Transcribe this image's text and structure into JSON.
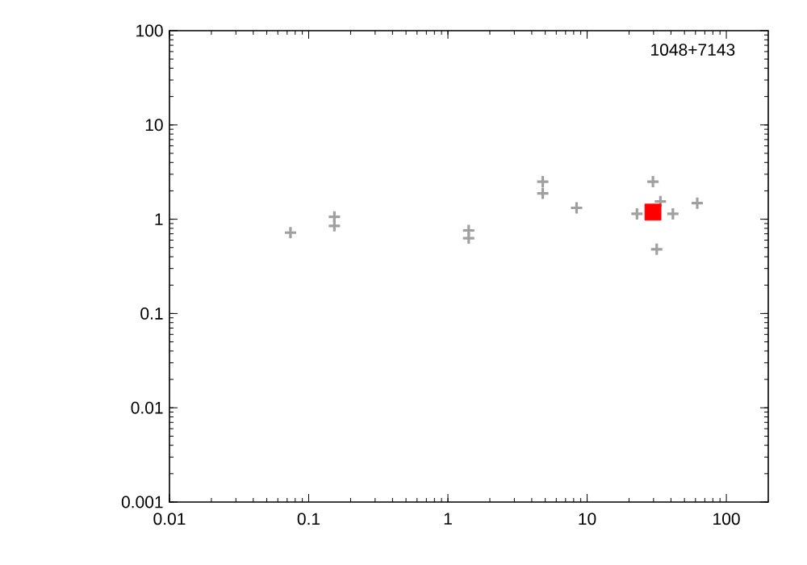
{
  "chart_data": {
    "type": "scatter",
    "log": "xy",
    "xlim": [
      0.01,
      200
    ],
    "ylim": [
      0.001,
      100
    ],
    "xticks": [
      0.01,
      0.1,
      1,
      10,
      100
    ],
    "yticks": [
      0.001,
      0.01,
      0.1,
      1,
      10,
      100
    ],
    "annotations": [
      "1048+7143"
    ],
    "series": [
      {
        "color": "#a0a0a0",
        "marker": "cross",
        "x": [
          0.074,
          0.153,
          0.153,
          1.41,
          1.41,
          4.8,
          4.8,
          8.4,
          22.8,
          29.7,
          33.6,
          41.3,
          31.6,
          61.8
        ],
        "values": [
          0.72,
          1.06,
          0.85,
          0.76,
          0.63,
          2.5,
          1.88,
          1.32,
          1.14,
          2.5,
          1.54,
          1.14,
          0.48,
          1.48
        ]
      },
      {
        "color": "#ff0000",
        "marker": "square",
        "x": [
          29.7
        ],
        "values": [
          1.19
        ]
      }
    ]
  }
}
